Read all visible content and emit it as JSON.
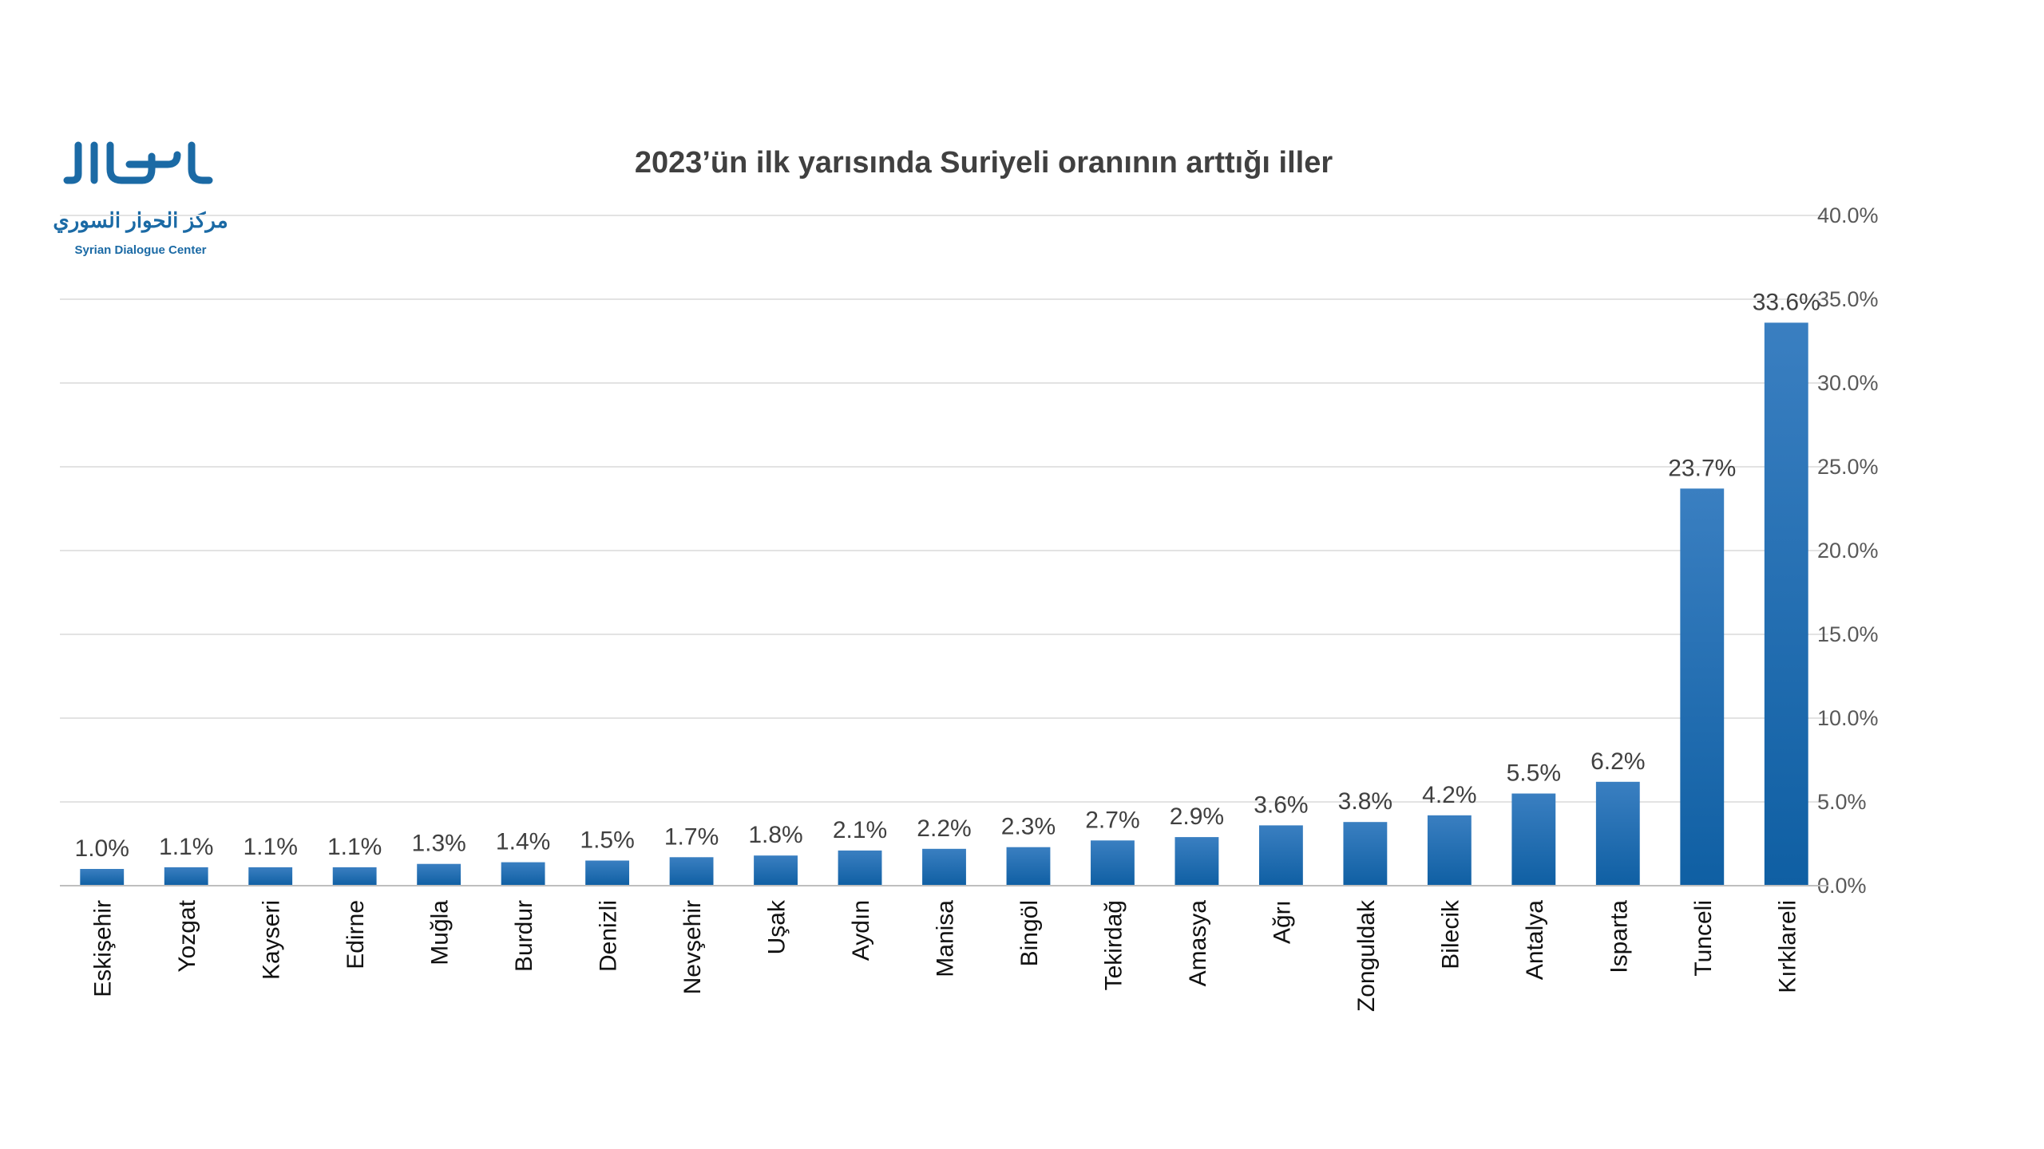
{
  "logo": {
    "arabic_wordmark": "الحوار",
    "arabic_name": "مركز الحوار السوري",
    "english_name": "Syrian Dialogue Center",
    "color": "#1b6aa5"
  },
  "chart_data": {
    "type": "bar",
    "title": "2023’ün ilk yarısında Suriyeli oranının arttığı iller",
    "xlabel": "",
    "ylabel": "",
    "ylim": [
      0,
      40
    ],
    "yticks": [
      "0.0%",
      "5.0%",
      "10.0%",
      "15.0%",
      "20.0%",
      "25.0%",
      "30.0%",
      "35.0%",
      "40.0%"
    ],
    "y_axis_side": "right",
    "grid": true,
    "categories": [
      "Eskişehir",
      "Yozgat",
      "Kayseri",
      "Edirne",
      "Muğla",
      "Burdur",
      "Denizli",
      "Nevşehir",
      "Uşak",
      "Aydın",
      "Manisa",
      "Bingöl",
      "Tekirdağ",
      "Amasya",
      "Ağrı",
      "Zonguldak",
      "Bilecik",
      "Antalya",
      "Isparta",
      "Tunceli",
      "Kırklareli"
    ],
    "values": [
      1.0,
      1.1,
      1.1,
      1.1,
      1.3,
      1.4,
      1.5,
      1.7,
      1.8,
      2.1,
      2.2,
      2.3,
      2.7,
      2.9,
      3.6,
      3.8,
      4.2,
      5.5,
      6.2,
      23.7,
      33.6
    ],
    "data_labels": [
      "1.0%",
      "1.1%",
      "1.1%",
      "1.1%",
      "1.3%",
      "1.4%",
      "1.5%",
      "1.7%",
      "1.8%",
      "2.1%",
      "2.2%",
      "2.3%",
      "2.7%",
      "2.9%",
      "3.6%",
      "3.8%",
      "4.2%",
      "5.5%",
      "6.2%",
      "23.7%",
      "33.6%"
    ],
    "bar_color_top": "#3a7fc1",
    "bar_color_bottom": "#0f5fa3",
    "gridline_color": "#e3e3e3",
    "axis_color": "#bfbfbf"
  }
}
